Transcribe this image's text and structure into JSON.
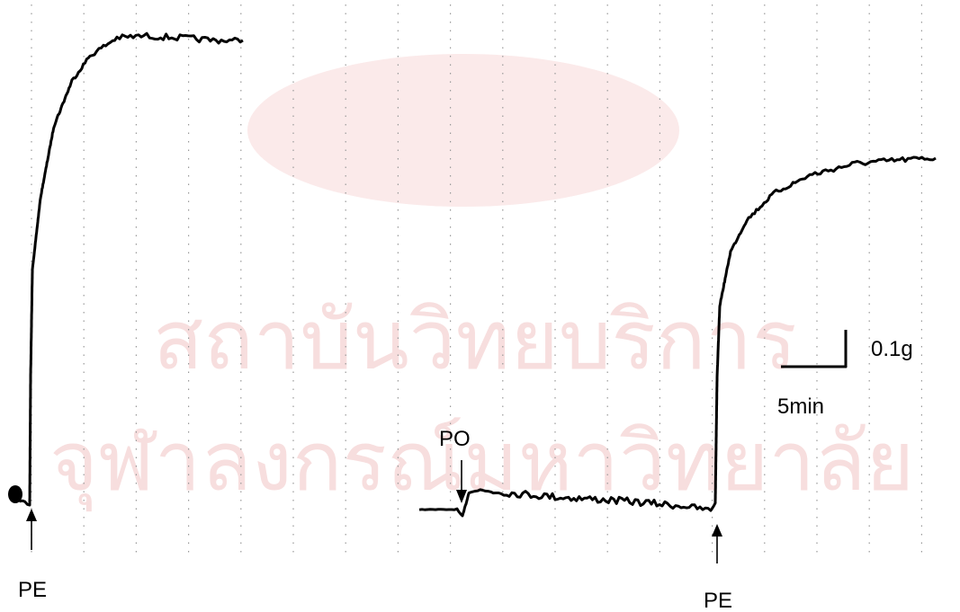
{
  "watermark": {
    "line1": "สถาบันวิทยบริการ",
    "line2": "จุฬาลงกรณ์มหาวิทยาลัย"
  },
  "labels": {
    "pe_first": "PE",
    "po": "PO",
    "pe_second": "PE",
    "scale_force": "0.1g",
    "scale_time": "5min"
  }
}
